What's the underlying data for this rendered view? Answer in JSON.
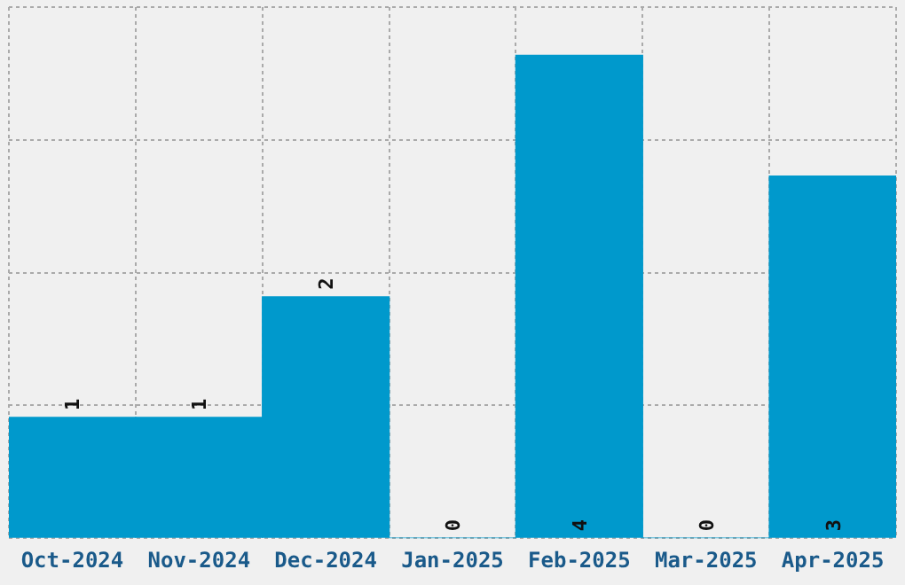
{
  "chart_data": {
    "type": "bar",
    "categories": [
      "Oct-2024",
      "Nov-2024",
      "Dec-2024",
      "Jan-2025",
      "Feb-2025",
      "Mar-2025",
      "Apr-2025"
    ],
    "values": [
      1,
      1,
      2,
      0,
      4,
      0,
      3
    ],
    "color": "#0099cc",
    "ylim": [
      0,
      4.4
    ],
    "yticks": [
      {
        "value": 0,
        "label": null
      },
      {
        "value": 1.1,
        "label": null
      },
      {
        "value": 2.2,
        "label": null
      },
      {
        "value": 3.3,
        "label": null
      },
      {
        "value": 4.4,
        "label": null
      }
    ],
    "tick_labels": "x",
    "grid": true,
    "data_labels": true
  }
}
